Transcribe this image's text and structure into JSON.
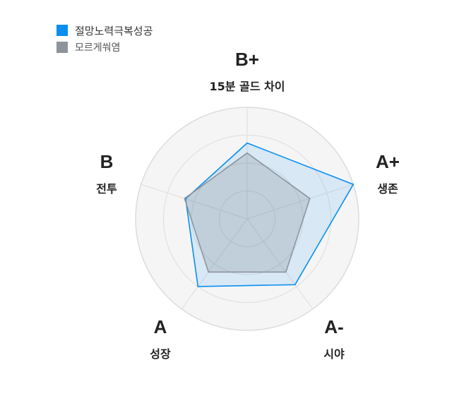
{
  "chart_data": {
    "type": "radar",
    "axes": [
      {
        "name": "15분 골드 차이",
        "grade": "B+"
      },
      {
        "name": "생존",
        "grade": "A+"
      },
      {
        "name": "시야",
        "grade": "A-"
      },
      {
        "name": "성장",
        "grade": "A"
      },
      {
        "name": "전투",
        "grade": "B"
      }
    ],
    "rlim": [
      0,
      100
    ],
    "rings": 4,
    "series": [
      {
        "name": "절망노력극복성공",
        "values": [
          68,
          100,
          73,
          75,
          58
        ],
        "color": "#0a8ff0",
        "fill": "rgba(10,143,240,0.12)"
      },
      {
        "name": "모르게쒀염",
        "values": [
          59,
          59,
          59,
          59,
          59
        ],
        "color": "#8e949c",
        "fill": "rgba(110,118,128,0.22)"
      }
    ],
    "legend_position": "top-left"
  }
}
